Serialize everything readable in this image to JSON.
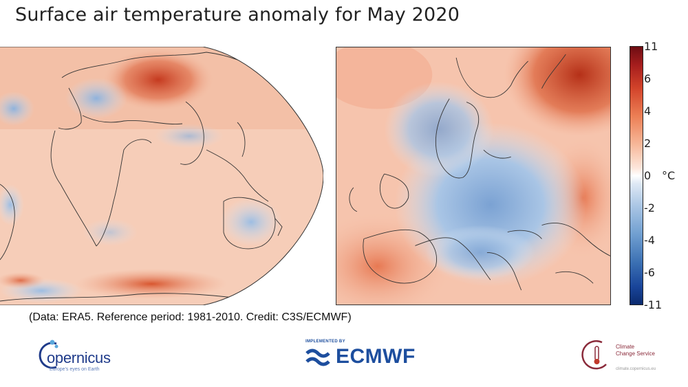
{
  "title": "Surface air temperature anomaly for May 2020",
  "colorbar": {
    "ticks": [
      "11",
      "6",
      "4",
      "2",
      "0",
      "-2",
      "-4",
      "-6",
      "-11"
    ],
    "unit": "°C",
    "warm_color": "#c0392b",
    "cold_color": "#1f4e9c"
  },
  "credit": "(Data: ERA5.  Reference period: 1981-2010.  Credit: C3S/ECMWF)",
  "logos": {
    "copernicus": {
      "word": "opernicus",
      "subtitle": "Europe's eyes on Earth"
    },
    "ecmwf": {
      "top": "IMPLEMENTED BY",
      "word": "ECMWF"
    },
    "c3s": {
      "line1": "Climate",
      "line2": "Change Service",
      "subtitle": "climate.copernicus.eu"
    }
  }
}
